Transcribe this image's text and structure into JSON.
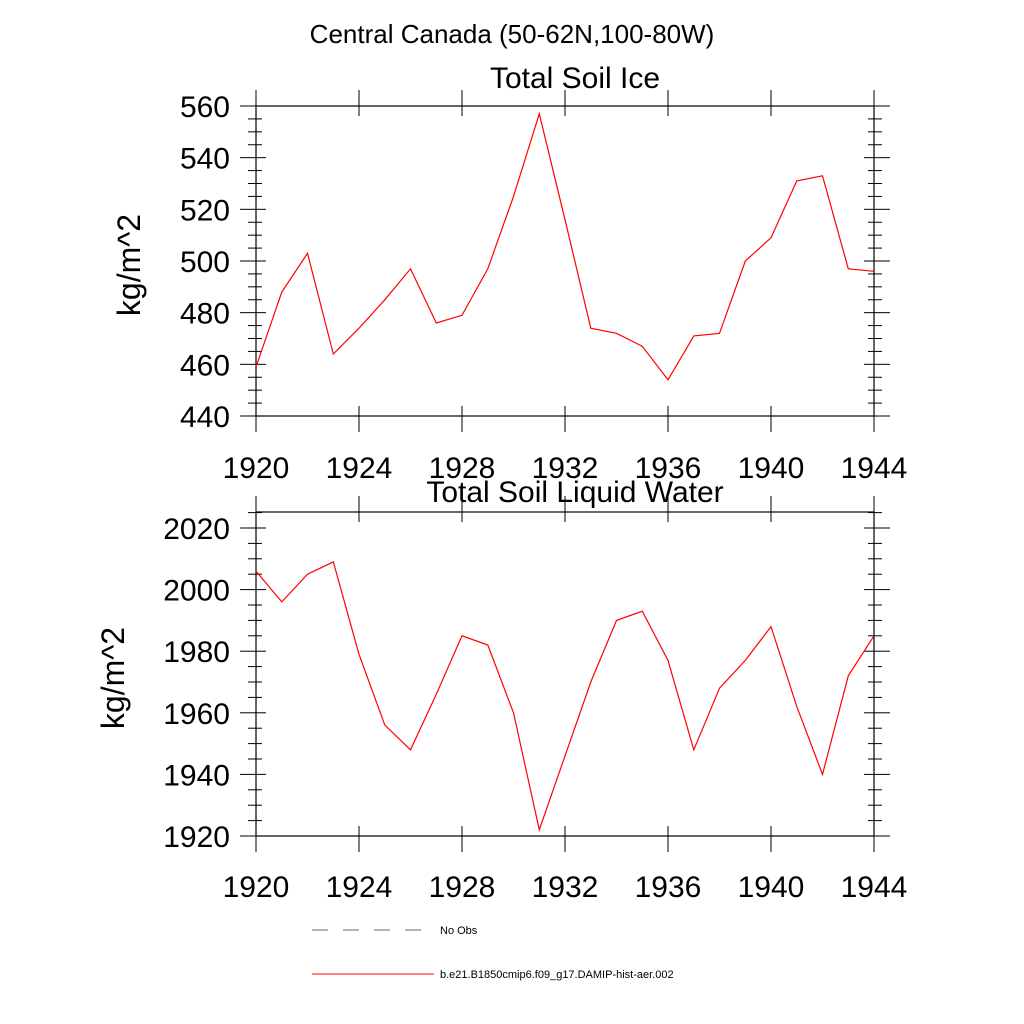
{
  "figure": {
    "main_title": "Central Canada (50-62N,100-80W)"
  },
  "chart_data": [
    {
      "type": "line",
      "title": "Total Soil Ice",
      "xlabel": "",
      "ylabel": "kg/m^2",
      "xlim": [
        1920,
        1944
      ],
      "ylim": [
        440,
        560
      ],
      "xticks": [
        1920,
        1924,
        1928,
        1932,
        1936,
        1940,
        1944
      ],
      "yticks": [
        440,
        460,
        480,
        500,
        520,
        540,
        560
      ],
      "grid": false,
      "series": [
        {
          "name": "b.e21.B1850cmip6.f09_g17.DAMIP-hist-aer.002",
          "color": "#ff0000",
          "x": [
            1920,
            1921,
            1922,
            1923,
            1924,
            1925,
            1926,
            1927,
            1928,
            1929,
            1930,
            1931,
            1932,
            1933,
            1934,
            1935,
            1936,
            1937,
            1938,
            1939,
            1940,
            1941,
            1942,
            1943,
            1944
          ],
          "y": [
            459,
            488,
            503,
            464,
            474,
            485,
            497,
            476,
            479,
            497,
            525,
            557,
            516,
            474,
            472,
            467,
            454,
            471,
            472,
            500,
            509,
            531,
            533,
            497,
            496
          ]
        }
      ]
    },
    {
      "type": "line",
      "title": "Total Soil Liquid Water",
      "xlabel": "",
      "ylabel": "kg/m^2",
      "xlim": [
        1920,
        1944
      ],
      "ylim": [
        1920,
        2025
      ],
      "xticks": [
        1920,
        1924,
        1928,
        1932,
        1936,
        1940,
        1944
      ],
      "yticks": [
        1920,
        1940,
        1960,
        1980,
        2000,
        2020
      ],
      "grid": false,
      "series": [
        {
          "name": "b.e21.B1850cmip6.f09_g17.DAMIP-hist-aer.002",
          "color": "#ff0000",
          "x": [
            1920,
            1921,
            1922,
            1923,
            1924,
            1925,
            1926,
            1927,
            1928,
            1929,
            1930,
            1931,
            1932,
            1933,
            1934,
            1935,
            1936,
            1937,
            1938,
            1939,
            1940,
            1941,
            1942,
            1943,
            1944
          ],
          "y": [
            2006,
            1996,
            2005,
            2009,
            1979,
            1956,
            1948,
            1966,
            1985,
            1982,
            1960,
            1922,
            1946,
            1970,
            1990,
            1993,
            1977,
            1948,
            1968,
            1977,
            1988,
            1962,
            1940,
            1972,
            1985
          ]
        }
      ]
    }
  ],
  "legend": {
    "placement": "bottom",
    "items": [
      {
        "label": "No Obs",
        "style": "dashed",
        "color": "#5a6a8a"
      },
      {
        "label": "b.e21.B1850cmip6.f09_g17.DAMIP-hist-aer.002",
        "style": "solid",
        "color": "#ff0000"
      }
    ]
  }
}
